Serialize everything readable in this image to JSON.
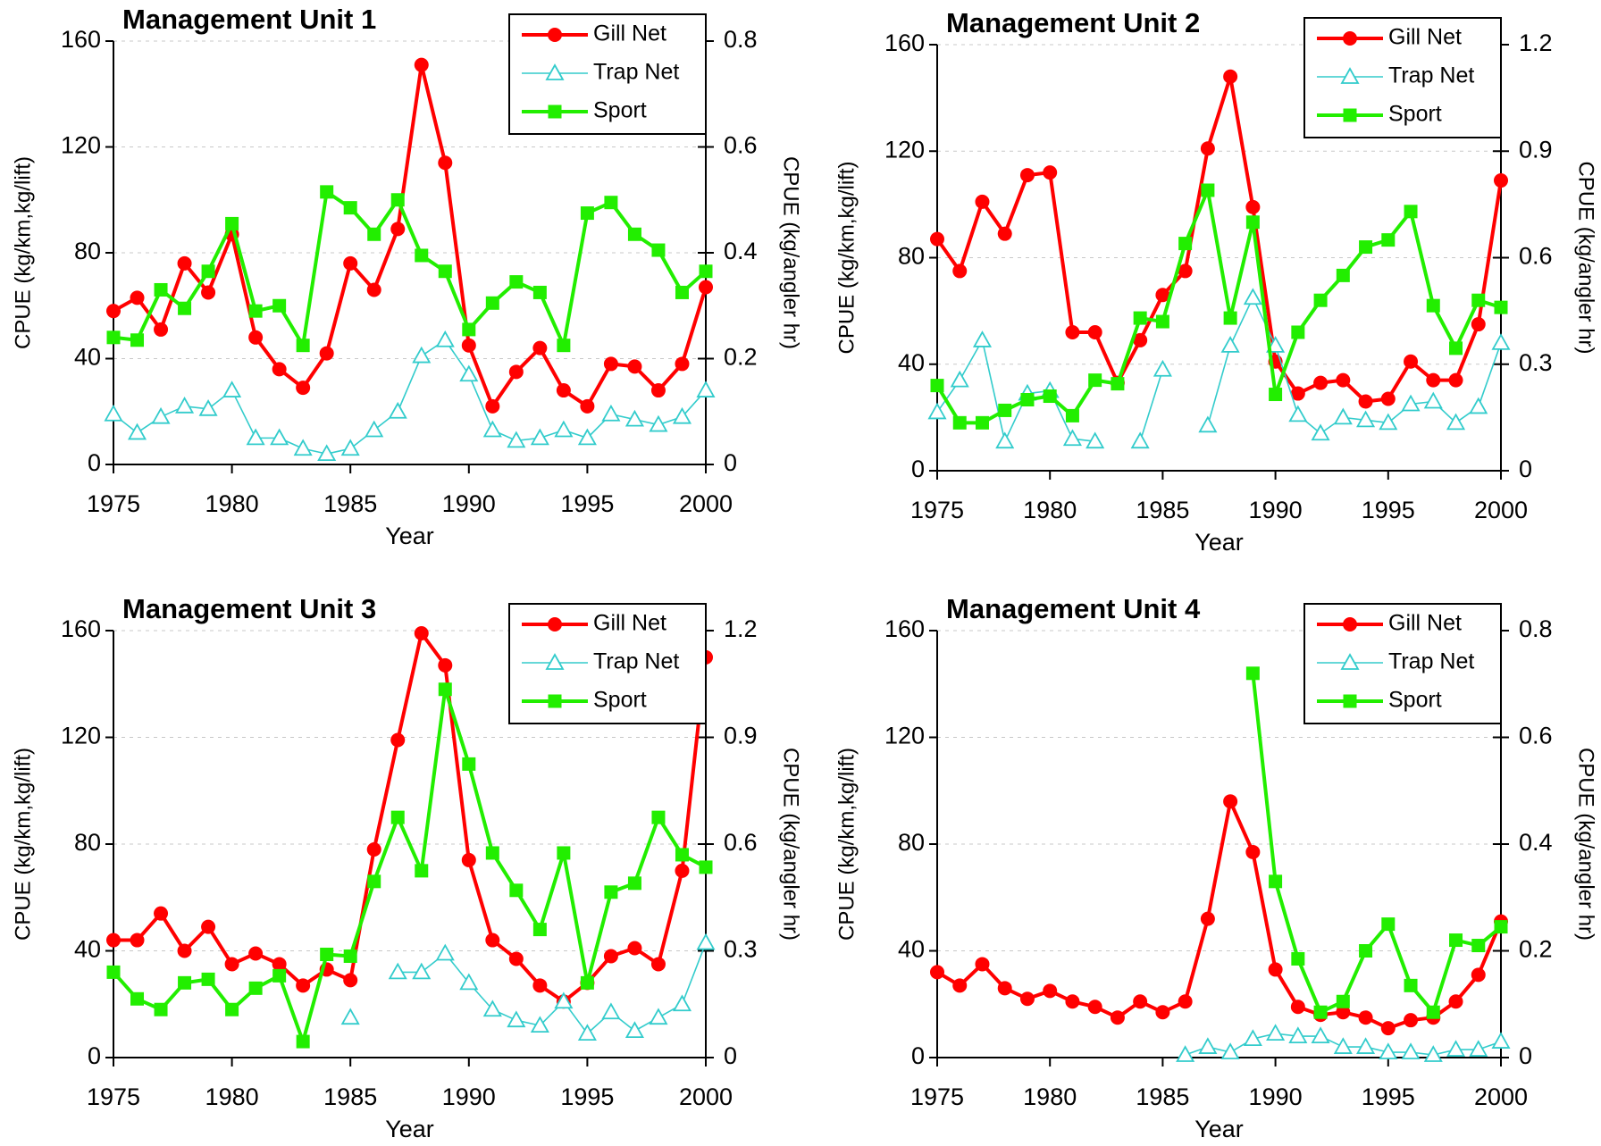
{
  "chart_data": [
    {
      "type": "line",
      "title": "Management Unit 1",
      "xlabel": "Year",
      "ylabel": "CPUE (kg/km,kg/lift)",
      "y2label": "CPUE (kg/angler hr)",
      "x": [
        1975,
        1976,
        1977,
        1978,
        1979,
        1980,
        1981,
        1982,
        1983,
        1984,
        1985,
        1986,
        1987,
        1988,
        1989,
        1990,
        1991,
        1992,
        1993,
        1994,
        1995,
        1996,
        1997,
        1998,
        1999,
        2000
      ],
      "xlim": [
        1975,
        2000
      ],
      "xticks": [
        1975,
        1980,
        1985,
        1990,
        1995,
        2000
      ],
      "ylim": [
        0,
        160
      ],
      "yticks": [
        0,
        40,
        80,
        120,
        160
      ],
      "y2lim": [
        0,
        0.8
      ],
      "y2ticks": [
        0,
        0.2,
        0.4,
        0.6,
        0.8
      ],
      "grid": true,
      "legend": "upper right",
      "series": [
        {
          "name": "Gill Net",
          "color": "#ff0000",
          "marker": "circle",
          "values": [
            58,
            63,
            51,
            76,
            65,
            87,
            48,
            36,
            29,
            42,
            76,
            66,
            89,
            151,
            114,
            45,
            22,
            35,
            44,
            28,
            22,
            38,
            37,
            28,
            38,
            67
          ]
        },
        {
          "name": "Trap Net",
          "color": "#33cccc",
          "marker": "triangle",
          "values": [
            19,
            12,
            18,
            22,
            21,
            28,
            10,
            10,
            6,
            4,
            6,
            13,
            20,
            41,
            47,
            34,
            13,
            9,
            10,
            13,
            10,
            19,
            17,
            15,
            18,
            28
          ]
        },
        {
          "name": "Sport",
          "color": "#22ee00",
          "marker": "square",
          "axis": "y2",
          "values": [
            0.24,
            0.235,
            0.33,
            0.295,
            0.365,
            0.455,
            0.29,
            0.3,
            0.225,
            0.515,
            0.485,
            0.435,
            0.5,
            0.395,
            0.365,
            0.255,
            0.305,
            0.345,
            0.325,
            0.225,
            0.475,
            0.495,
            0.435,
            0.405,
            0.325,
            0.365
          ]
        }
      ]
    },
    {
      "type": "line",
      "title": "Management Unit 2",
      "xlabel": "Year",
      "ylabel": "CPUE (kg/km,kg/lift)",
      "y2label": "CPUE (kg/angler hr)",
      "x": [
        1975,
        1976,
        1977,
        1978,
        1979,
        1980,
        1981,
        1982,
        1983,
        1984,
        1985,
        1986,
        1987,
        1988,
        1989,
        1990,
        1991,
        1992,
        1993,
        1994,
        1995,
        1996,
        1997,
        1998,
        1999,
        2000
      ],
      "xlim": [
        1975,
        2000
      ],
      "xticks": [
        1975,
        1980,
        1985,
        1990,
        1995,
        2000
      ],
      "ylim": [
        0,
        160
      ],
      "yticks": [
        0,
        40,
        80,
        120,
        160
      ],
      "y2lim": [
        0,
        1.2
      ],
      "y2ticks": [
        0,
        0.3,
        0.6,
        0.9,
        1.2
      ],
      "grid": true,
      "legend": "upper right",
      "series": [
        {
          "name": "Gill Net",
          "color": "#ff0000",
          "marker": "circle",
          "values": [
            87,
            75,
            101,
            89,
            111,
            112,
            52,
            52,
            33,
            49,
            66,
            75,
            121,
            148,
            99,
            41,
            29,
            33,
            34,
            26,
            27,
            41,
            34,
            34,
            55,
            109
          ]
        },
        {
          "name": "Trap Net",
          "color": "#33cccc",
          "marker": "triangle",
          "values": [
            22,
            34,
            49,
            11,
            29,
            30,
            12,
            11,
            null,
            11,
            38,
            null,
            17,
            47,
            65,
            47,
            21,
            14,
            20,
            19,
            18,
            25,
            26,
            18,
            24,
            48
          ]
        },
        {
          "name": "Sport",
          "color": "#22ee00",
          "marker": "square",
          "axis": "y2",
          "values": [
            0.24,
            0.135,
            0.135,
            0.17,
            0.2,
            0.21,
            0.155,
            0.255,
            0.245,
            0.43,
            0.42,
            0.64,
            0.79,
            0.43,
            0.7,
            0.215,
            0.39,
            0.48,
            0.55,
            0.63,
            0.65,
            0.73,
            0.465,
            0.345,
            0.48,
            0.46
          ]
        }
      ]
    },
    {
      "type": "line",
      "title": "Management Unit 3",
      "xlabel": "Year",
      "ylabel": "CPUE (kg/km,kg/lift)",
      "y2label": "CPUE (kg/angler hr)",
      "x": [
        1975,
        1976,
        1977,
        1978,
        1979,
        1980,
        1981,
        1982,
        1983,
        1984,
        1985,
        1986,
        1987,
        1988,
        1989,
        1990,
        1991,
        1992,
        1993,
        1994,
        1995,
        1996,
        1997,
        1998,
        1999,
        2000
      ],
      "xlim": [
        1975,
        2000
      ],
      "xticks": [
        1975,
        1980,
        1985,
        1990,
        1995,
        2000
      ],
      "ylim": [
        0,
        160
      ],
      "yticks": [
        0,
        40,
        80,
        120,
        160
      ],
      "y2lim": [
        0,
        1.2
      ],
      "y2ticks": [
        0,
        0.3,
        0.6,
        0.9,
        1.2
      ],
      "grid": true,
      "legend": "upper right",
      "series": [
        {
          "name": "Gill Net",
          "color": "#ff0000",
          "marker": "circle",
          "values": [
            44,
            44,
            54,
            40,
            49,
            35,
            39,
            35,
            27,
            33,
            29,
            78,
            119,
            159,
            147,
            74,
            44,
            37,
            27,
            21,
            28,
            38,
            41,
            35,
            70,
            150
          ]
        },
        {
          "name": "Trap Net",
          "color": "#33cccc",
          "marker": "triangle",
          "values": [
            null,
            null,
            null,
            null,
            null,
            null,
            null,
            null,
            null,
            null,
            15,
            null,
            32,
            32,
            39,
            28,
            18,
            14,
            12,
            21,
            9,
            17,
            10,
            15,
            20,
            43
          ]
        },
        {
          "name": "Sport",
          "color": "#22ee00",
          "marker": "square",
          "axis": "y2",
          "values": [
            0.24,
            0.165,
            0.135,
            0.21,
            0.22,
            0.135,
            0.195,
            0.23,
            0.045,
            0.29,
            0.285,
            0.495,
            0.675,
            0.525,
            1.035,
            0.825,
            0.575,
            0.47,
            0.36,
            0.575,
            0.21,
            0.465,
            0.49,
            0.675,
            0.57,
            0.535
          ]
        }
      ]
    },
    {
      "type": "line",
      "title": "Management Unit 4",
      "xlabel": "Year",
      "ylabel": "CPUE (kg/km,kg/lift)",
      "y2label": "CPUE (kg/angler hr)",
      "x": [
        1975,
        1976,
        1977,
        1978,
        1979,
        1980,
        1981,
        1982,
        1983,
        1984,
        1985,
        1986,
        1987,
        1988,
        1989,
        1990,
        1991,
        1992,
        1993,
        1994,
        1995,
        1996,
        1997,
        1998,
        1999,
        2000
      ],
      "xlim": [
        1975,
        2000
      ],
      "xticks": [
        1975,
        1980,
        1985,
        1990,
        1995,
        2000
      ],
      "ylim": [
        0,
        160
      ],
      "yticks": [
        0,
        40,
        80,
        120,
        160
      ],
      "y2lim": [
        0,
        0.8
      ],
      "y2ticks": [
        0,
        0.2,
        0.4,
        0.6,
        0.8
      ],
      "grid": true,
      "legend": "upper right",
      "series": [
        {
          "name": "Gill Net",
          "color": "#ff0000",
          "marker": "circle",
          "values": [
            32,
            27,
            35,
            26,
            22,
            25,
            21,
            19,
            15,
            21,
            17,
            21,
            52,
            96,
            77,
            33,
            19,
            16,
            17,
            15,
            11,
            14,
            15,
            21,
            31,
            51
          ]
        },
        {
          "name": "Trap Net",
          "color": "#33cccc",
          "marker": "triangle",
          "values": [
            null,
            null,
            null,
            null,
            null,
            null,
            null,
            null,
            null,
            null,
            null,
            1,
            4,
            2,
            7,
            9,
            8,
            8,
            4,
            4,
            2,
            2,
            1,
            3,
            3,
            6
          ]
        },
        {
          "name": "Sport",
          "color": "#22ee00",
          "marker": "square",
          "axis": "y2",
          "values": [
            null,
            null,
            null,
            null,
            null,
            null,
            null,
            null,
            null,
            null,
            null,
            null,
            null,
            null,
            0.72,
            0.33,
            0.185,
            0.085,
            0.105,
            0.2,
            0.25,
            0.135,
            0.085,
            0.22,
            0.21,
            0.245
          ]
        }
      ]
    }
  ]
}
